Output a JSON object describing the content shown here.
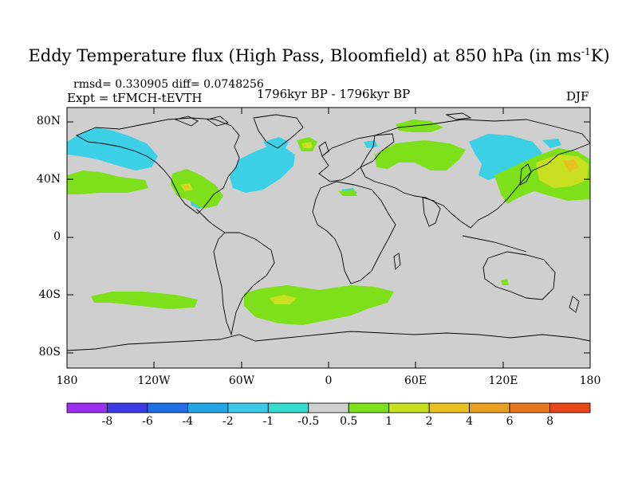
{
  "title_main": "Eddy Temperature flux (High Pass, Bloomfield) at 850 hPa (in ms",
  "title_sup": "-1",
  "title_end": "K)",
  "stats": "rmsd= 0.330905 diff= 0.0748256",
  "experiment": "Expt = tFMCH-tEVTH",
  "period": "1796kyr BP - 1796kyr BP",
  "season": "DJF",
  "lat_labels": [
    "80N",
    "40N",
    "0",
    "40S",
    "80S"
  ],
  "lon_labels": [
    "180",
    "120W",
    "60W",
    "0",
    "60E",
    "120E",
    "180"
  ],
  "colorbar": {
    "colors": [
      "#9b30f0",
      "#3b3be8",
      "#1f6fe8",
      "#21a6e6",
      "#3cc8e8",
      "#36dcd0",
      "#cfcfcf",
      "#7ee01a",
      "#c8e020",
      "#e8c020",
      "#e8a020",
      "#e87820",
      "#e84818"
    ],
    "labels": [
      "-8",
      "-6",
      "-4",
      "-2",
      "-1",
      "-0.5",
      "0.5",
      "1",
      "2",
      "4",
      "6",
      "8"
    ]
  },
  "colors": {
    "background": "#cfcfcf",
    "cyan": "#3cd0e6",
    "green": "#7ee01a",
    "yellow": "#c8e020",
    "orange": "#e8c020",
    "coast": "#000000"
  }
}
